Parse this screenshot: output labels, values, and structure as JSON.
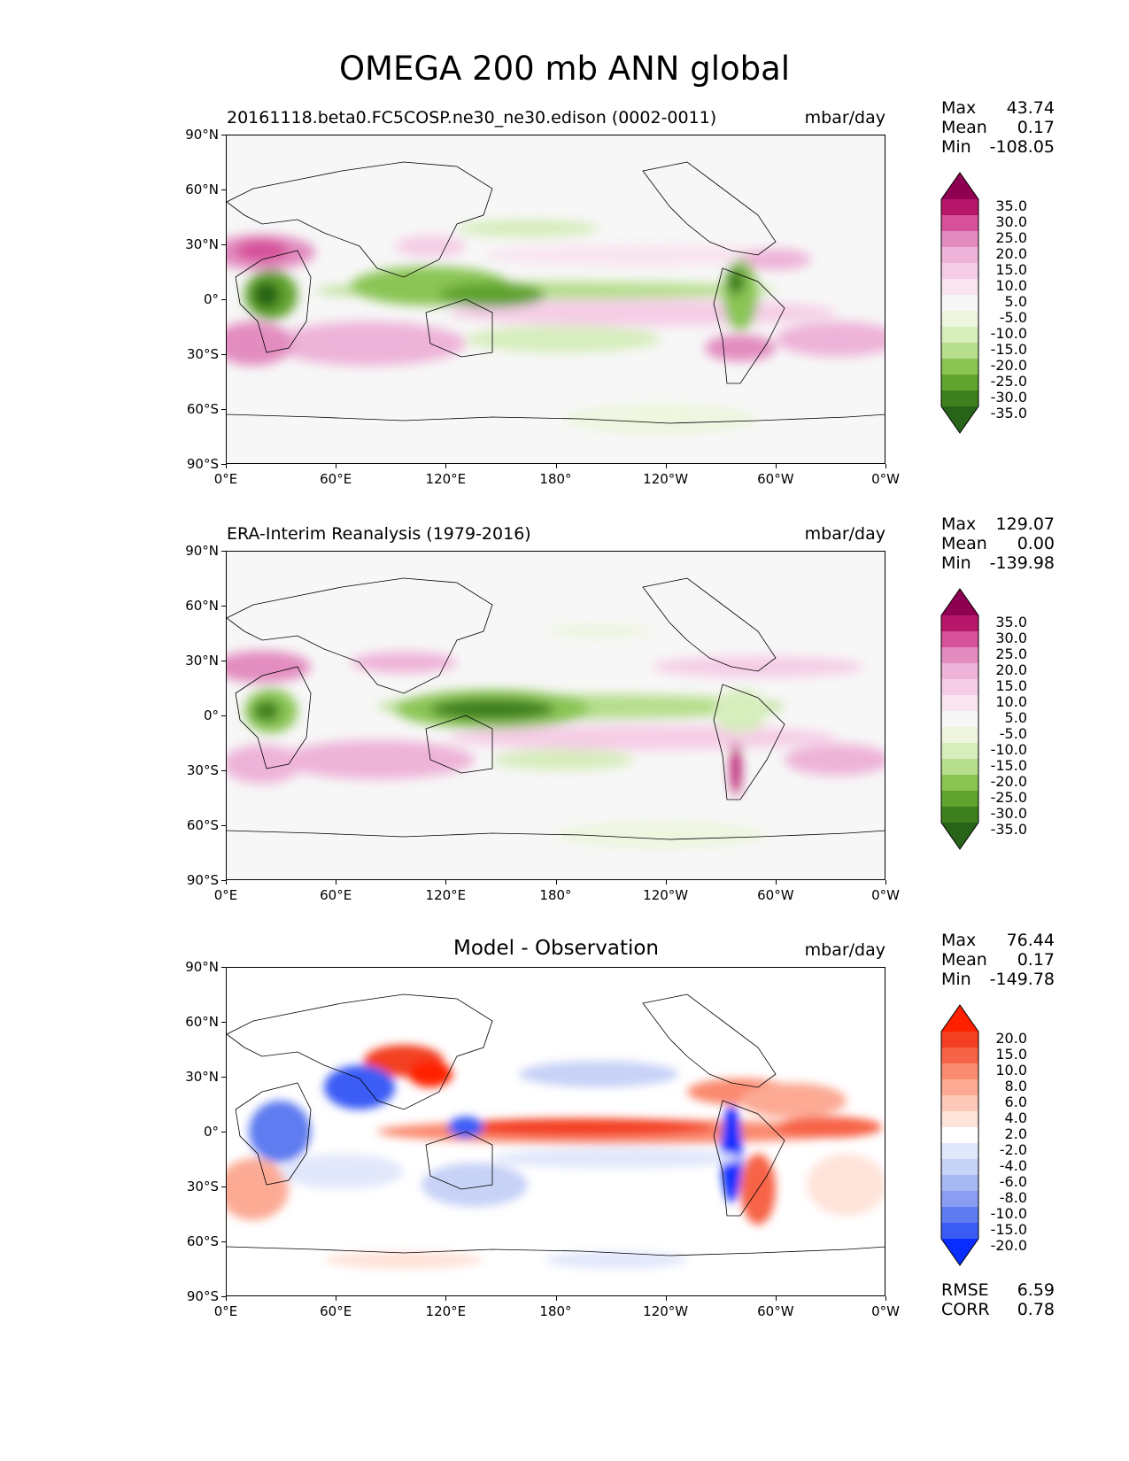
{
  "title": "OMEGA 200 mb ANN global",
  "lat_ticks": [
    "90°N",
    "60°N",
    "30°N",
    "0°",
    "30°S",
    "60°S",
    "90°S"
  ],
  "lon_ticks": [
    "0°E",
    "60°E",
    "120°E",
    "180°",
    "120°W",
    "60°W",
    "0°W"
  ],
  "panels": [
    {
      "title": "20161118.beta0.FC5COSP.ne30_ne30.edison (0002-0011)",
      "units": "mbar/day",
      "stats": {
        "max_label": "Max",
        "max": "43.74",
        "mean_label": "Mean",
        "mean": "0.17",
        "min_label": "Min",
        "min": "-108.05"
      },
      "colorbar": {
        "labels": [
          "35.0",
          "30.0",
          "25.0",
          "20.0",
          "15.0",
          "10.0",
          "5.0",
          "-5.0",
          "-10.0",
          "-15.0",
          "-20.0",
          "-25.0",
          "-30.0",
          "-35.0"
        ],
        "colors": [
          "#8e0152",
          "#b8166a",
          "#d6509a",
          "#e38cbf",
          "#eeb3d8",
          "#f5cde6",
          "#f9e4f0",
          "#f7f7f7",
          "#eef6e0",
          "#d6edbc",
          "#b6de8c",
          "#8ac554",
          "#60a32f",
          "#3e7f1e",
          "#276419"
        ]
      }
    },
    {
      "title": "ERA-Interim Reanalysis (1979-2016)",
      "units": "mbar/day",
      "stats": {
        "max_label": "Max",
        "max": "129.07",
        "mean_label": "Mean",
        "mean": "0.00",
        "min_label": "Min",
        "min": "-139.98"
      },
      "colorbar": {
        "labels": [
          "35.0",
          "30.0",
          "25.0",
          "20.0",
          "15.0",
          "10.0",
          "5.0",
          "-5.0",
          "-10.0",
          "-15.0",
          "-20.0",
          "-25.0",
          "-30.0",
          "-35.0"
        ],
        "colors": [
          "#8e0152",
          "#b8166a",
          "#d6509a",
          "#e38cbf",
          "#eeb3d8",
          "#f5cde6",
          "#f9e4f0",
          "#f7f7f7",
          "#eef6e0",
          "#d6edbc",
          "#b6de8c",
          "#8ac554",
          "#60a32f",
          "#3e7f1e",
          "#276419"
        ]
      }
    },
    {
      "title": "Model - Observation",
      "units": "mbar/day",
      "stats": {
        "max_label": "Max",
        "max": "76.44",
        "mean_label": "Mean",
        "mean": "0.17",
        "min_label": "Min",
        "min": "-149.78"
      },
      "colorbar": {
        "labels": [
          "20.0",
          "15.0",
          "10.0",
          "8.0",
          "6.0",
          "4.0",
          "2.0",
          "-2.0",
          "-4.0",
          "-6.0",
          "-8.0",
          "-10.0",
          "-15.0",
          "-20.0"
        ],
        "colors": [
          "#ff2000",
          "#f33f22",
          "#f76347",
          "#fa8a70",
          "#fcaa94",
          "#fdc8b8",
          "#fee3d9",
          "#ffffff",
          "#e2e8fb",
          "#c7d2f7",
          "#a8b8f3",
          "#8a9df0",
          "#5e7cf0",
          "#3a5cf5",
          "#0a2dff"
        ]
      },
      "rmse_label": "RMSE",
      "rmse": "6.59",
      "corr_label": "CORR",
      "corr": "0.78"
    }
  ]
}
